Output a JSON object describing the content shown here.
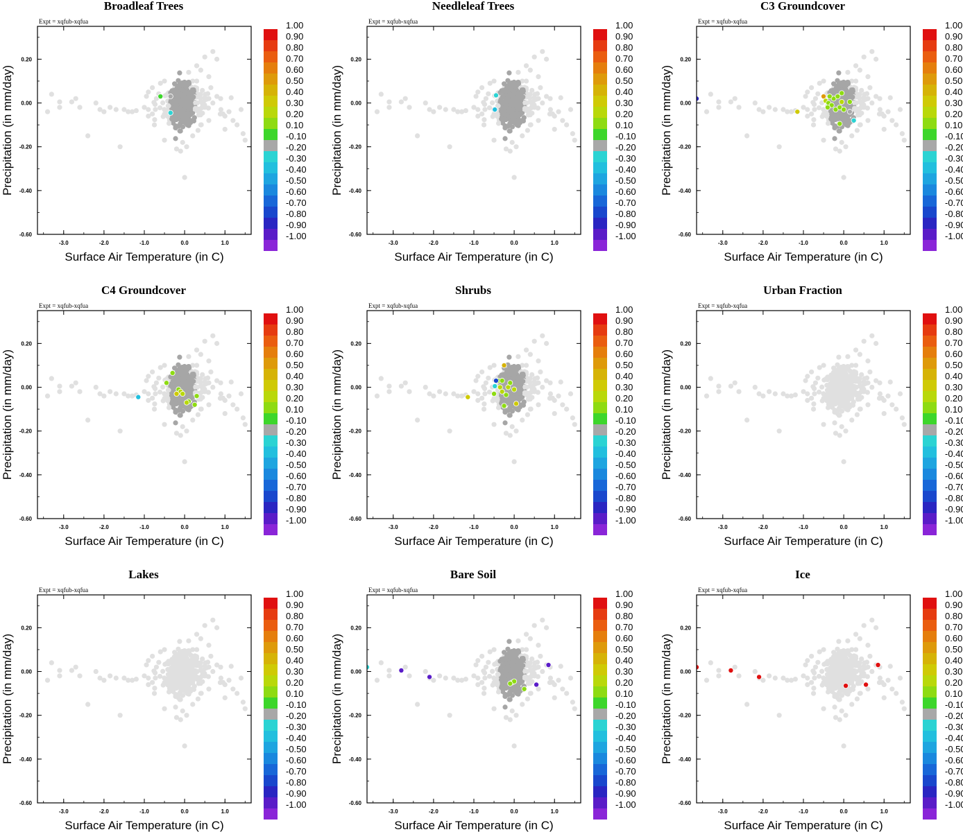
{
  "figure": {
    "expt_label": "Expt = xqfub-xqfua",
    "x_ticks": [
      "-3.0",
      "-2.0",
      "-1.0",
      "0.0",
      "1.0"
    ],
    "y_ticks": [
      "0.20",
      "0.00",
      "-0.20",
      "-0.40",
      "-0.60"
    ]
  },
  "chart_data": [
    {
      "type": "scatter",
      "title": "Broadleaf Trees",
      "xlabel": "Surface Air Temperature (in C)",
      "ylabel": "Precipitation (in mm/day)",
      "xlim": [
        -3.65,
        1.65
      ],
      "ylim": [
        -0.6,
        0.35
      ],
      "highlighted": [
        {
          "x": -0.35,
          "y": 0.03,
          "value": -0.2
        },
        {
          "x": -0.35,
          "y": -0.045,
          "value": -0.25
        },
        {
          "x": -0.6,
          "y": 0.03,
          "value": -0.1
        }
      ]
    },
    {
      "type": "scatter",
      "title": "Needleleaf Trees",
      "xlabel": "Surface Air Temperature (in C)",
      "ylabel": "Precipitation (in mm/day)",
      "xlim": [
        -3.65,
        1.65
      ],
      "ylim": [
        -0.6,
        0.35
      ],
      "highlighted": [
        {
          "x": -0.45,
          "y": 0.035,
          "value": -0.3
        },
        {
          "x": -0.48,
          "y": -0.03,
          "value": -0.35
        }
      ]
    },
    {
      "type": "scatter",
      "title": "C3 Groundcover",
      "xlabel": "Surface Air Temperature (in C)",
      "ylabel": "Precipitation (in mm/day)",
      "xlim": [
        -3.65,
        1.65
      ],
      "ylim": [
        -0.6,
        0.35
      ],
      "highlighted": [
        {
          "x": -3.65,
          "y": 0.02,
          "value": -0.85
        },
        {
          "x": -1.15,
          "y": -0.04,
          "value": 0.3
        },
        {
          "x": -0.5,
          "y": 0.03,
          "value": 0.5
        },
        {
          "x": -0.45,
          "y": 0.01,
          "value": 0.2
        },
        {
          "x": -0.38,
          "y": 0.0,
          "value": 0.15
        },
        {
          "x": -0.3,
          "y": -0.01,
          "value": 0.15
        },
        {
          "x": -0.25,
          "y": 0.02,
          "value": 0.15
        },
        {
          "x": -0.2,
          "y": -0.03,
          "value": 0.15
        },
        {
          "x": -0.15,
          "y": 0.03,
          "value": 0.15
        },
        {
          "x": -0.1,
          "y": -0.02,
          "value": 0.15
        },
        {
          "x": -0.05,
          "y": 0.005,
          "value": 0.2
        },
        {
          "x": 0.0,
          "y": -0.03,
          "value": 0.15
        },
        {
          "x": -0.05,
          "y": 0.045,
          "value": 0.15
        },
        {
          "x": 0.15,
          "y": 0.005,
          "value": 0.15
        },
        {
          "x": -0.35,
          "y": 0.03,
          "value": 0.15
        },
        {
          "x": -0.1,
          "y": -0.095,
          "value": 0.15
        },
        {
          "x": -0.4,
          "y": -0.02,
          "value": 0.15
        },
        {
          "x": 0.25,
          "y": -0.08,
          "value": -0.3
        },
        {
          "x": 0.15,
          "y": -0.04,
          "value": -0.2
        }
      ]
    },
    {
      "type": "scatter",
      "title": "C4 Groundcover",
      "xlabel": "Surface Air Temperature (in C)",
      "ylabel": "Precipitation (in mm/day)",
      "xlim": [
        -3.65,
        1.65
      ],
      "ylim": [
        -0.6,
        0.35
      ],
      "highlighted": [
        {
          "x": -1.15,
          "y": -0.045,
          "value": -0.35
        },
        {
          "x": -0.45,
          "y": 0.02,
          "value": 0.15
        },
        {
          "x": -0.3,
          "y": 0.065,
          "value": 0.15
        },
        {
          "x": -0.15,
          "y": -0.01,
          "value": 0.15
        },
        {
          "x": -0.1,
          "y": -0.02,
          "value": 0.25
        },
        {
          "x": -0.05,
          "y": -0.03,
          "value": 0.2
        },
        {
          "x": -0.2,
          "y": -0.03,
          "value": 0.3
        },
        {
          "x": 0.1,
          "y": -0.065,
          "value": 0.15
        },
        {
          "x": 0.25,
          "y": -0.08,
          "value": 0.15
        },
        {
          "x": 0.3,
          "y": -0.04,
          "value": 0.15
        },
        {
          "x": 0.05,
          "y": -0.07,
          "value": 0.2
        }
      ]
    },
    {
      "type": "scatter",
      "title": "Shrubs",
      "xlabel": "Surface Air Temperature (in C)",
      "ylabel": "Precipitation (in mm/day)",
      "xlim": [
        -3.65,
        1.65
      ],
      "ylim": [
        -0.6,
        0.35
      ],
      "highlighted": [
        {
          "x": -1.15,
          "y": -0.045,
          "value": 0.35
        },
        {
          "x": -0.25,
          "y": 0.1,
          "value": 0.45
        },
        {
          "x": -0.4,
          "y": 0.03,
          "value": 0.15
        },
        {
          "x": -0.35,
          "y": 0.0,
          "value": 0.2
        },
        {
          "x": -0.3,
          "y": -0.02,
          "value": 0.25
        },
        {
          "x": -0.2,
          "y": -0.035,
          "value": 0.15
        },
        {
          "x": -0.1,
          "y": 0.02,
          "value": 0.15
        },
        {
          "x": 0.0,
          "y": -0.01,
          "value": 0.2
        },
        {
          "x": -0.5,
          "y": -0.03,
          "value": 0.15
        },
        {
          "x": -0.45,
          "y": 0.03,
          "value": -0.75
        },
        {
          "x": -0.48,
          "y": 0.005,
          "value": -0.3
        },
        {
          "x": -0.25,
          "y": -0.085,
          "value": 0.15
        },
        {
          "x": 0.05,
          "y": -0.075,
          "value": 0.3
        },
        {
          "x": -0.15,
          "y": 0.0,
          "value": 0.2
        },
        {
          "x": -0.3,
          "y": 0.03,
          "value": 0.15
        }
      ]
    },
    {
      "type": "scatter",
      "title": "Urban Fraction",
      "xlabel": "Surface Air Temperature (in C)",
      "ylabel": "Precipitation (in mm/day)",
      "xlim": [
        -3.65,
        1.65
      ],
      "ylim": [
        -0.6,
        0.35
      ],
      "highlighted": []
    },
    {
      "type": "scatter",
      "title": "Lakes",
      "xlabel": "Surface Air Temperature (in C)",
      "ylabel": "Precipitation (in mm/day)",
      "xlim": [
        -3.65,
        1.65
      ],
      "ylim": [
        -0.6,
        0.35
      ],
      "highlighted": []
    },
    {
      "type": "scatter",
      "title": "Bare Soil",
      "xlabel": "Surface Air Temperature (in C)",
      "ylabel": "Precipitation (in mm/day)",
      "xlim": [
        -3.65,
        1.65
      ],
      "ylim": [
        -0.6,
        0.35
      ],
      "highlighted": [
        {
          "x": -3.65,
          "y": 0.02,
          "value": -0.25
        },
        {
          "x": -2.8,
          "y": 0.005,
          "value": -0.95
        },
        {
          "x": -2.1,
          "y": -0.025,
          "value": -0.95
        },
        {
          "x": 0.85,
          "y": 0.03,
          "value": -0.95
        },
        {
          "x": 0.55,
          "y": -0.06,
          "value": -0.95
        },
        {
          "x": -0.05,
          "y": -0.05,
          "value": 0.15
        },
        {
          "x": 0.0,
          "y": -0.045,
          "value": 0.15
        },
        {
          "x": 0.25,
          "y": -0.08,
          "value": 0.15
        },
        {
          "x": -0.1,
          "y": -0.055,
          "value": 0.15
        }
      ]
    },
    {
      "type": "scatter",
      "title": "Ice",
      "xlabel": "Surface Air Temperature (in C)",
      "ylabel": "Precipitation (in mm/day)",
      "xlim": [
        -3.65,
        1.65
      ],
      "ylim": [
        -0.6,
        0.35
      ],
      "highlighted": [
        {
          "x": -3.65,
          "y": 0.02,
          "value": 0.95
        },
        {
          "x": -2.8,
          "y": 0.005,
          "value": 0.95
        },
        {
          "x": -2.1,
          "y": -0.025,
          "value": 0.95
        },
        {
          "x": 0.05,
          "y": -0.065,
          "value": 0.95
        },
        {
          "x": 0.55,
          "y": -0.06,
          "value": 0.95
        },
        {
          "x": 0.85,
          "y": 0.03,
          "value": 0.95
        }
      ]
    }
  ],
  "colorbar": {
    "labels": [
      "1.00",
      "0.90",
      "0.80",
      "0.70",
      "0.60",
      "0.50",
      "0.40",
      "0.30",
      "0.20",
      "0.10",
      "-0.10",
      "-0.20",
      "-0.30",
      "-0.40",
      "-0.50",
      "-0.60",
      "-0.70",
      "-0.80",
      "-0.90",
      "-1.00"
    ],
    "colors": [
      "#e01010",
      "#e63b10",
      "#ea5d0f",
      "#e57e0c",
      "#de9a0a",
      "#d6b306",
      "#cfca05",
      "#b9d80a",
      "#8edb12",
      "#3dd62b",
      "#a8a8a8",
      "#2bd3d3",
      "#22bfde",
      "#1ea5e0",
      "#1a88de",
      "#1867d8",
      "#1947cd",
      "#2a25c2",
      "#5a1cc8",
      "#8a25d8"
    ]
  },
  "background_points": {
    "light_color": "#e0e0e0",
    "dark_color": "#a6a6a6",
    "light": [
      [
        -3.4,
        -0.04
      ],
      [
        -3.3,
        0.04
      ],
      [
        -3.1,
        0.005
      ],
      [
        -3.1,
        -0.02
      ],
      [
        -2.8,
        0.005
      ],
      [
        -2.7,
        0.02
      ],
      [
        -2.6,
        -0.02
      ],
      [
        -2.4,
        -0.15
      ],
      [
        -2.2,
        0.0
      ],
      [
        -2.1,
        -0.03
      ],
      [
        -2.0,
        -0.04
      ],
      [
        -1.85,
        -0.02
      ],
      [
        -1.7,
        -0.03
      ],
      [
        -1.6,
        -0.2
      ],
      [
        -1.5,
        -0.03
      ],
      [
        -1.4,
        -0.04
      ],
      [
        -1.3,
        -0.04
      ],
      [
        -1.2,
        -0.035
      ],
      [
        -1.0,
        -0.02
      ],
      [
        -0.9,
        -0.03
      ],
      [
        -0.9,
        -0.06
      ],
      [
        -0.8,
        -0.05
      ],
      [
        -0.75,
        -0.1
      ],
      [
        0.3,
        0.06
      ],
      [
        0.4,
        0.04
      ],
      [
        0.5,
        0.025
      ],
      [
        0.6,
        0.02
      ],
      [
        0.65,
        0.07
      ],
      [
        0.7,
        0.0
      ],
      [
        0.8,
        0.03
      ],
      [
        0.9,
        -0.03
      ],
      [
        0.95,
        -0.05
      ],
      [
        1.0,
        -0.06
      ],
      [
        1.1,
        -0.04
      ],
      [
        1.2,
        -0.08
      ],
      [
        1.3,
        -0.1
      ],
      [
        1.45,
        -0.14
      ],
      [
        1.5,
        -0.17
      ],
      [
        0.5,
        0.21
      ],
      [
        0.7,
        0.235
      ],
      [
        0.3,
        0.17
      ],
      [
        0.1,
        0.14
      ],
      [
        1.0,
        -0.12
      ],
      [
        1.4,
        -0.03
      ],
      [
        0.0,
        -0.34
      ],
      [
        -0.1,
        -0.22
      ],
      [
        -0.2,
        -0.21
      ],
      [
        0.05,
        -0.2
      ],
      [
        -0.05,
        -0.18
      ],
      [
        -0.5,
        -0.17
      ],
      [
        0.2,
        -0.15
      ],
      [
        0.4,
        -0.1
      ],
      [
        0.6,
        -0.08
      ],
      [
        -0.6,
        0.09
      ],
      [
        -0.5,
        0.1
      ],
      [
        0.2,
        0.1
      ],
      [
        0.3,
        0.1
      ],
      [
        -0.8,
        0.07
      ],
      [
        -0.9,
        0.05
      ],
      [
        0.6,
        0.12
      ],
      [
        0.8,
        0.2
      ],
      [
        0.4,
        0.15
      ],
      [
        -0.7,
        0.02
      ],
      [
        0.5,
        -0.02
      ],
      [
        0.35,
        -0.04
      ]
    ]
  }
}
